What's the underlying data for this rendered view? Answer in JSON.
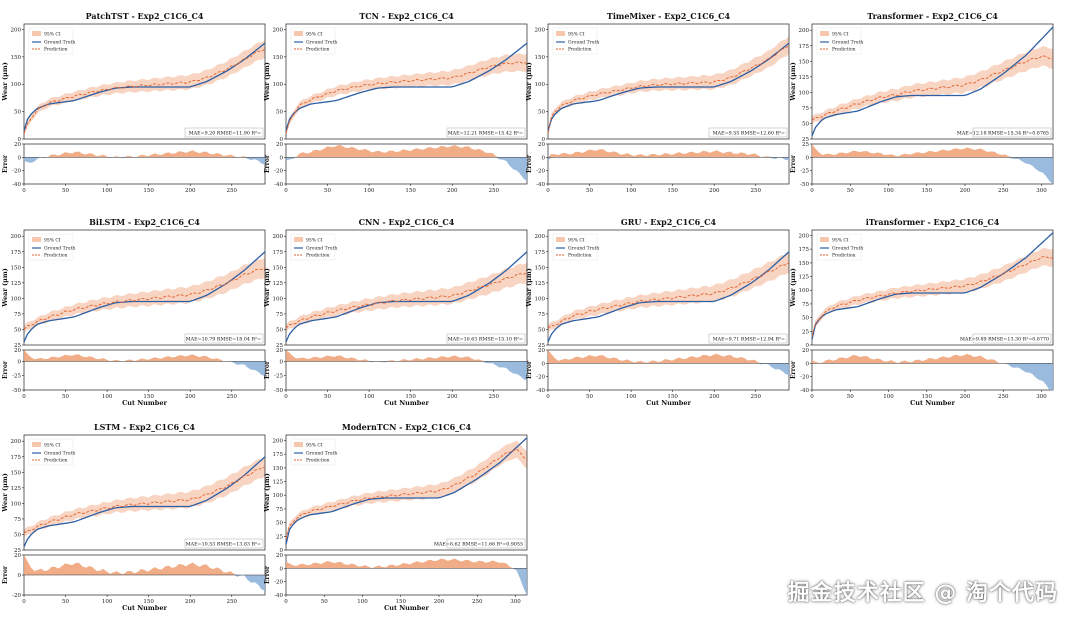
{
  "figure": {
    "legend_labels": [
      "95% CI",
      "Ground Truth",
      "Prediction"
    ],
    "xlabel": "Cut Number",
    "ylabel_main": "Wear (μm)",
    "ylabel_err": "Error",
    "colors": {
      "truth": "#2c5fa6",
      "pred": "#e2602c",
      "ci": "#f6c6ad",
      "err_pos": "#f0a47a",
      "err_neg": "#8fb3da"
    }
  },
  "watermark": "掘金技术社区 @ 淘个代码",
  "chart_data": [
    {
      "type": "line",
      "title": "PatchTST - Exp2_C1C6_C4",
      "metrics": "MAE=9.20   RMSE=11.90   R²=",
      "xmax": 290,
      "xticks": [
        0,
        50,
        100,
        150,
        200,
        250
      ],
      "ylim": [
        0,
        210
      ],
      "yticks": [
        0,
        50,
        100,
        150,
        200
      ],
      "elim": [
        -40,
        20
      ],
      "eticks": [
        -40,
        -20,
        0,
        20
      ],
      "truth": [
        [
          0,
          15
        ],
        [
          5,
          40
        ],
        [
          15,
          55
        ],
        [
          30,
          64
        ],
        [
          60,
          70
        ],
        [
          90,
          85
        ],
        [
          110,
          93
        ],
        [
          130,
          95
        ],
        [
          200,
          95
        ],
        [
          220,
          105
        ],
        [
          245,
          125
        ],
        [
          265,
          145
        ],
        [
          290,
          175
        ]
      ],
      "pred": [
        [
          0,
          10
        ],
        [
          5,
          30
        ],
        [
          15,
          52
        ],
        [
          30,
          66
        ],
        [
          60,
          78
        ],
        [
          90,
          88
        ],
        [
          110,
          93
        ],
        [
          130,
          96
        ],
        [
          200,
          104
        ],
        [
          220,
          112
        ],
        [
          245,
          128
        ],
        [
          265,
          145
        ],
        [
          280,
          158
        ],
        [
          290,
          165
        ]
      ]
    },
    {
      "type": "line",
      "title": "TCN - Exp2_C1C6_C4",
      "metrics": "MAE=12.21   RMSE=15.42   R²=",
      "xmax": 290,
      "xticks": [
        0,
        50,
        100,
        150,
        200,
        250
      ],
      "ylim": [
        0,
        210
      ],
      "yticks": [
        0,
        50,
        100,
        150,
        200
      ],
      "elim": [
        -40,
        20
      ],
      "eticks": [
        -40,
        -20,
        0,
        20
      ],
      "truth": [
        [
          0,
          15
        ],
        [
          5,
          40
        ],
        [
          15,
          55
        ],
        [
          30,
          64
        ],
        [
          60,
          70
        ],
        [
          90,
          85
        ],
        [
          110,
          93
        ],
        [
          130,
          95
        ],
        [
          200,
          95
        ],
        [
          220,
          105
        ],
        [
          245,
          125
        ],
        [
          265,
          145
        ],
        [
          290,
          175
        ]
      ],
      "pred": [
        [
          0,
          10
        ],
        [
          5,
          35
        ],
        [
          15,
          60
        ],
        [
          30,
          72
        ],
        [
          60,
          88
        ],
        [
          90,
          97
        ],
        [
          110,
          101
        ],
        [
          130,
          104
        ],
        [
          200,
          112
        ],
        [
          220,
          120
        ],
        [
          245,
          132
        ],
        [
          265,
          138
        ],
        [
          290,
          140
        ]
      ]
    },
    {
      "type": "line",
      "title": "TimeMixer - Exp2_C1C6_C4",
      "metrics": "MAE=9.55   RMSE=12.60   R²=",
      "xmax": 290,
      "xticks": [
        0,
        50,
        100,
        150,
        200,
        250
      ],
      "ylim": [
        0,
        210
      ],
      "yticks": [
        0,
        50,
        100,
        150,
        200
      ],
      "elim": [
        -40,
        20
      ],
      "eticks": [
        -40,
        -20,
        0,
        20
      ],
      "truth": [
        [
          0,
          15
        ],
        [
          5,
          40
        ],
        [
          15,
          55
        ],
        [
          30,
          64
        ],
        [
          60,
          70
        ],
        [
          90,
          85
        ],
        [
          110,
          93
        ],
        [
          130,
          95
        ],
        [
          200,
          95
        ],
        [
          220,
          105
        ],
        [
          245,
          125
        ],
        [
          265,
          145
        ],
        [
          290,
          175
        ]
      ],
      "pred": [
        [
          0,
          10
        ],
        [
          5,
          45
        ],
        [
          15,
          60
        ],
        [
          30,
          70
        ],
        [
          60,
          82
        ],
        [
          90,
          90
        ],
        [
          110,
          96
        ],
        [
          130,
          99
        ],
        [
          200,
          104
        ],
        [
          220,
          112
        ],
        [
          245,
          130
        ],
        [
          265,
          145
        ],
        [
          290,
          172
        ]
      ]
    },
    {
      "type": "line",
      "title": "Transformer - Exp2_C1C6_C4",
      "metrics": "MAE=12.18   RMSE=15.34   R²=0.8765",
      "xmax": 315,
      "xticks": [
        0,
        50,
        100,
        150,
        200,
        250,
        300
      ],
      "ylim": [
        25,
        210
      ],
      "yticks": [
        25,
        50,
        75,
        100,
        125,
        150,
        175,
        200
      ],
      "elim": [
        -50,
        25
      ],
      "eticks": [
        -50,
        -25,
        0,
        25
      ],
      "truth": [
        [
          0,
          30
        ],
        [
          5,
          45
        ],
        [
          15,
          58
        ],
        [
          30,
          64
        ],
        [
          60,
          70
        ],
        [
          90,
          85
        ],
        [
          110,
          93
        ],
        [
          130,
          95
        ],
        [
          200,
          95
        ],
        [
          220,
          105
        ],
        [
          250,
          130
        ],
        [
          280,
          160
        ],
        [
          315,
          205
        ]
      ],
      "pred": [
        [
          0,
          55
        ],
        [
          5,
          58
        ],
        [
          30,
          70
        ],
        [
          60,
          82
        ],
        [
          90,
          92
        ],
        [
          110,
          96
        ],
        [
          130,
          102
        ],
        [
          200,
          112
        ],
        [
          220,
          120
        ],
        [
          250,
          135
        ],
        [
          280,
          150
        ],
        [
          300,
          158
        ],
        [
          315,
          155
        ]
      ]
    },
    {
      "type": "line",
      "title": "BiLSTM - Exp2_C1C6_C4",
      "metrics": "MAE=10.79   RMSE=18.04   R²=",
      "xmax": 290,
      "xticks": [
        0,
        50,
        100,
        150,
        200,
        250
      ],
      "ylim": [
        25,
        210
      ],
      "yticks": [
        25,
        50,
        75,
        100,
        125,
        150,
        175,
        200
      ],
      "elim": [
        -50,
        20
      ],
      "eticks": [
        -50,
        -25,
        0,
        20
      ],
      "truth": [
        [
          0,
          30
        ],
        [
          5,
          45
        ],
        [
          15,
          58
        ],
        [
          30,
          64
        ],
        [
          60,
          70
        ],
        [
          90,
          85
        ],
        [
          110,
          93
        ],
        [
          130,
          95
        ],
        [
          200,
          95
        ],
        [
          220,
          105
        ],
        [
          245,
          125
        ],
        [
          265,
          145
        ],
        [
          290,
          175
        ]
      ],
      "pred": [
        [
          0,
          50
        ],
        [
          5,
          55
        ],
        [
          15,
          62
        ],
        [
          30,
          70
        ],
        [
          60,
          82
        ],
        [
          90,
          90
        ],
        [
          110,
          94
        ],
        [
          130,
          97
        ],
        [
          200,
          106
        ],
        [
          220,
          113
        ],
        [
          245,
          125
        ],
        [
          265,
          138
        ],
        [
          290,
          150
        ]
      ]
    },
    {
      "type": "line",
      "title": "CNN - Exp2_C1C6_C4",
      "metrics": "MAE=10.63   RMSE=15.10   R²=",
      "xmax": 290,
      "xticks": [
        0,
        50,
        100,
        150,
        200,
        250
      ],
      "ylim": [
        25,
        210
      ],
      "yticks": [
        25,
        50,
        75,
        100,
        125,
        150,
        175,
        200
      ],
      "elim": [
        -50,
        20
      ],
      "eticks": [
        -50,
        -25,
        0,
        20
      ],
      "truth": [
        [
          0,
          30
        ],
        [
          5,
          45
        ],
        [
          15,
          58
        ],
        [
          30,
          64
        ],
        [
          60,
          70
        ],
        [
          90,
          85
        ],
        [
          110,
          93
        ],
        [
          130,
          95
        ],
        [
          200,
          95
        ],
        [
          220,
          105
        ],
        [
          245,
          125
        ],
        [
          265,
          145
        ],
        [
          290,
          175
        ]
      ],
      "pred": [
        [
          0,
          52
        ],
        [
          5,
          57
        ],
        [
          15,
          63
        ],
        [
          30,
          70
        ],
        [
          60,
          80
        ],
        [
          90,
          88
        ],
        [
          110,
          92
        ],
        [
          130,
          96
        ],
        [
          200,
          104
        ],
        [
          220,
          112
        ],
        [
          245,
          122
        ],
        [
          265,
          132
        ],
        [
          290,
          142
        ]
      ]
    },
    {
      "type": "line",
      "title": "GRU - Exp2_C1C6_C4",
      "metrics": "MAE=9.71   RMSE=12.94   R²=",
      "xmax": 290,
      "xticks": [
        0,
        50,
        100,
        150,
        200,
        250
      ],
      "ylim": [
        25,
        210
      ],
      "yticks": [
        25,
        50,
        75,
        100,
        125,
        150,
        175,
        200
      ],
      "elim": [
        -40,
        20
      ],
      "eticks": [
        -40,
        -20,
        0,
        20
      ],
      "truth": [
        [
          0,
          30
        ],
        [
          5,
          45
        ],
        [
          15,
          58
        ],
        [
          30,
          64
        ],
        [
          60,
          70
        ],
        [
          90,
          85
        ],
        [
          110,
          93
        ],
        [
          130,
          95
        ],
        [
          200,
          95
        ],
        [
          220,
          105
        ],
        [
          245,
          125
        ],
        [
          265,
          145
        ],
        [
          290,
          175
        ]
      ],
      "pred": [
        [
          0,
          52
        ],
        [
          5,
          55
        ],
        [
          15,
          62
        ],
        [
          30,
          72
        ],
        [
          60,
          82
        ],
        [
          90,
          90
        ],
        [
          110,
          95
        ],
        [
          130,
          98
        ],
        [
          200,
          108
        ],
        [
          220,
          116
        ],
        [
          245,
          130
        ],
        [
          265,
          142
        ],
        [
          290,
          158
        ]
      ]
    },
    {
      "type": "line",
      "title": "iTransformer - Exp2_C1C6_C4",
      "metrics": "MAE=9.89   RMSE=13.30   R²=0.8770",
      "xmax": 315,
      "xticks": [
        0,
        50,
        100,
        150,
        200,
        250,
        300
      ],
      "ylim": [
        0,
        210
      ],
      "yticks": [
        0,
        25,
        50,
        75,
        100,
        125,
        150,
        175,
        200
      ],
      "elim": [
        -40,
        20
      ],
      "eticks": [
        -40,
        -20,
        0,
        20
      ],
      "truth": [
        [
          0,
          10
        ],
        [
          5,
          40
        ],
        [
          15,
          55
        ],
        [
          30,
          64
        ],
        [
          60,
          70
        ],
        [
          90,
          85
        ],
        [
          110,
          93
        ],
        [
          130,
          95
        ],
        [
          200,
          95
        ],
        [
          220,
          105
        ],
        [
          250,
          130
        ],
        [
          280,
          160
        ],
        [
          315,
          205
        ]
      ],
      "pred": [
        [
          0,
          15
        ],
        [
          5,
          40
        ],
        [
          15,
          58
        ],
        [
          30,
          70
        ],
        [
          60,
          82
        ],
        [
          90,
          90
        ],
        [
          110,
          95
        ],
        [
          130,
          98
        ],
        [
          200,
          108
        ],
        [
          220,
          115
        ],
        [
          250,
          130
        ],
        [
          280,
          148
        ],
        [
          300,
          160
        ],
        [
          315,
          160
        ]
      ]
    },
    {
      "type": "line",
      "title": "LSTM - Exp2_C1C6_C4",
      "metrics": "MAE=10.53   RMSE=13.83   R²=",
      "xmax": 290,
      "xticks": [
        0,
        50,
        100,
        150,
        200,
        250
      ],
      "ylim": [
        25,
        210
      ],
      "yticks": [
        25,
        50,
        75,
        100,
        125,
        150,
        175,
        200
      ],
      "elim": [
        -20,
        20
      ],
      "eticks": [
        -20,
        0,
        20
      ],
      "truth": [
        [
          0,
          30
        ],
        [
          5,
          45
        ],
        [
          15,
          58
        ],
        [
          30,
          64
        ],
        [
          60,
          70
        ],
        [
          90,
          85
        ],
        [
          110,
          93
        ],
        [
          130,
          95
        ],
        [
          200,
          95
        ],
        [
          220,
          105
        ],
        [
          245,
          125
        ],
        [
          265,
          145
        ],
        [
          290,
          175
        ]
      ],
      "pred": [
        [
          0,
          52
        ],
        [
          5,
          55
        ],
        [
          15,
          62
        ],
        [
          30,
          70
        ],
        [
          60,
          82
        ],
        [
          90,
          90
        ],
        [
          110,
          95
        ],
        [
          130,
          98
        ],
        [
          200,
          106
        ],
        [
          220,
          114
        ],
        [
          245,
          128
        ],
        [
          265,
          143
        ],
        [
          290,
          160
        ]
      ]
    },
    {
      "type": "line",
      "title": "ModernTCN - Exp2_C1C6_C4",
      "metrics": "MAE=8.62   RMSE=11.66   R²=0.9055",
      "xmax": 315,
      "xticks": [
        0,
        50,
        100,
        150,
        200,
        250,
        300
      ],
      "ylim": [
        0,
        210
      ],
      "yticks": [
        0,
        25,
        50,
        75,
        100,
        125,
        150,
        175,
        200
      ],
      "elim": [
        -40,
        20
      ],
      "eticks": [
        -40,
        -20,
        0,
        20
      ],
      "truth": [
        [
          0,
          10
        ],
        [
          5,
          40
        ],
        [
          15,
          55
        ],
        [
          30,
          64
        ],
        [
          60,
          70
        ],
        [
          90,
          85
        ],
        [
          110,
          93
        ],
        [
          130,
          95
        ],
        [
          200,
          95
        ],
        [
          220,
          105
        ],
        [
          250,
          130
        ],
        [
          280,
          160
        ],
        [
          315,
          205
        ]
      ],
      "pred": [
        [
          0,
          20
        ],
        [
          5,
          45
        ],
        [
          15,
          60
        ],
        [
          30,
          70
        ],
        [
          60,
          80
        ],
        [
          90,
          90
        ],
        [
          110,
          95
        ],
        [
          130,
          98
        ],
        [
          200,
          108
        ],
        [
          220,
          118
        ],
        [
          250,
          140
        ],
        [
          280,
          170
        ],
        [
          300,
          185
        ],
        [
          315,
          165
        ]
      ]
    }
  ]
}
